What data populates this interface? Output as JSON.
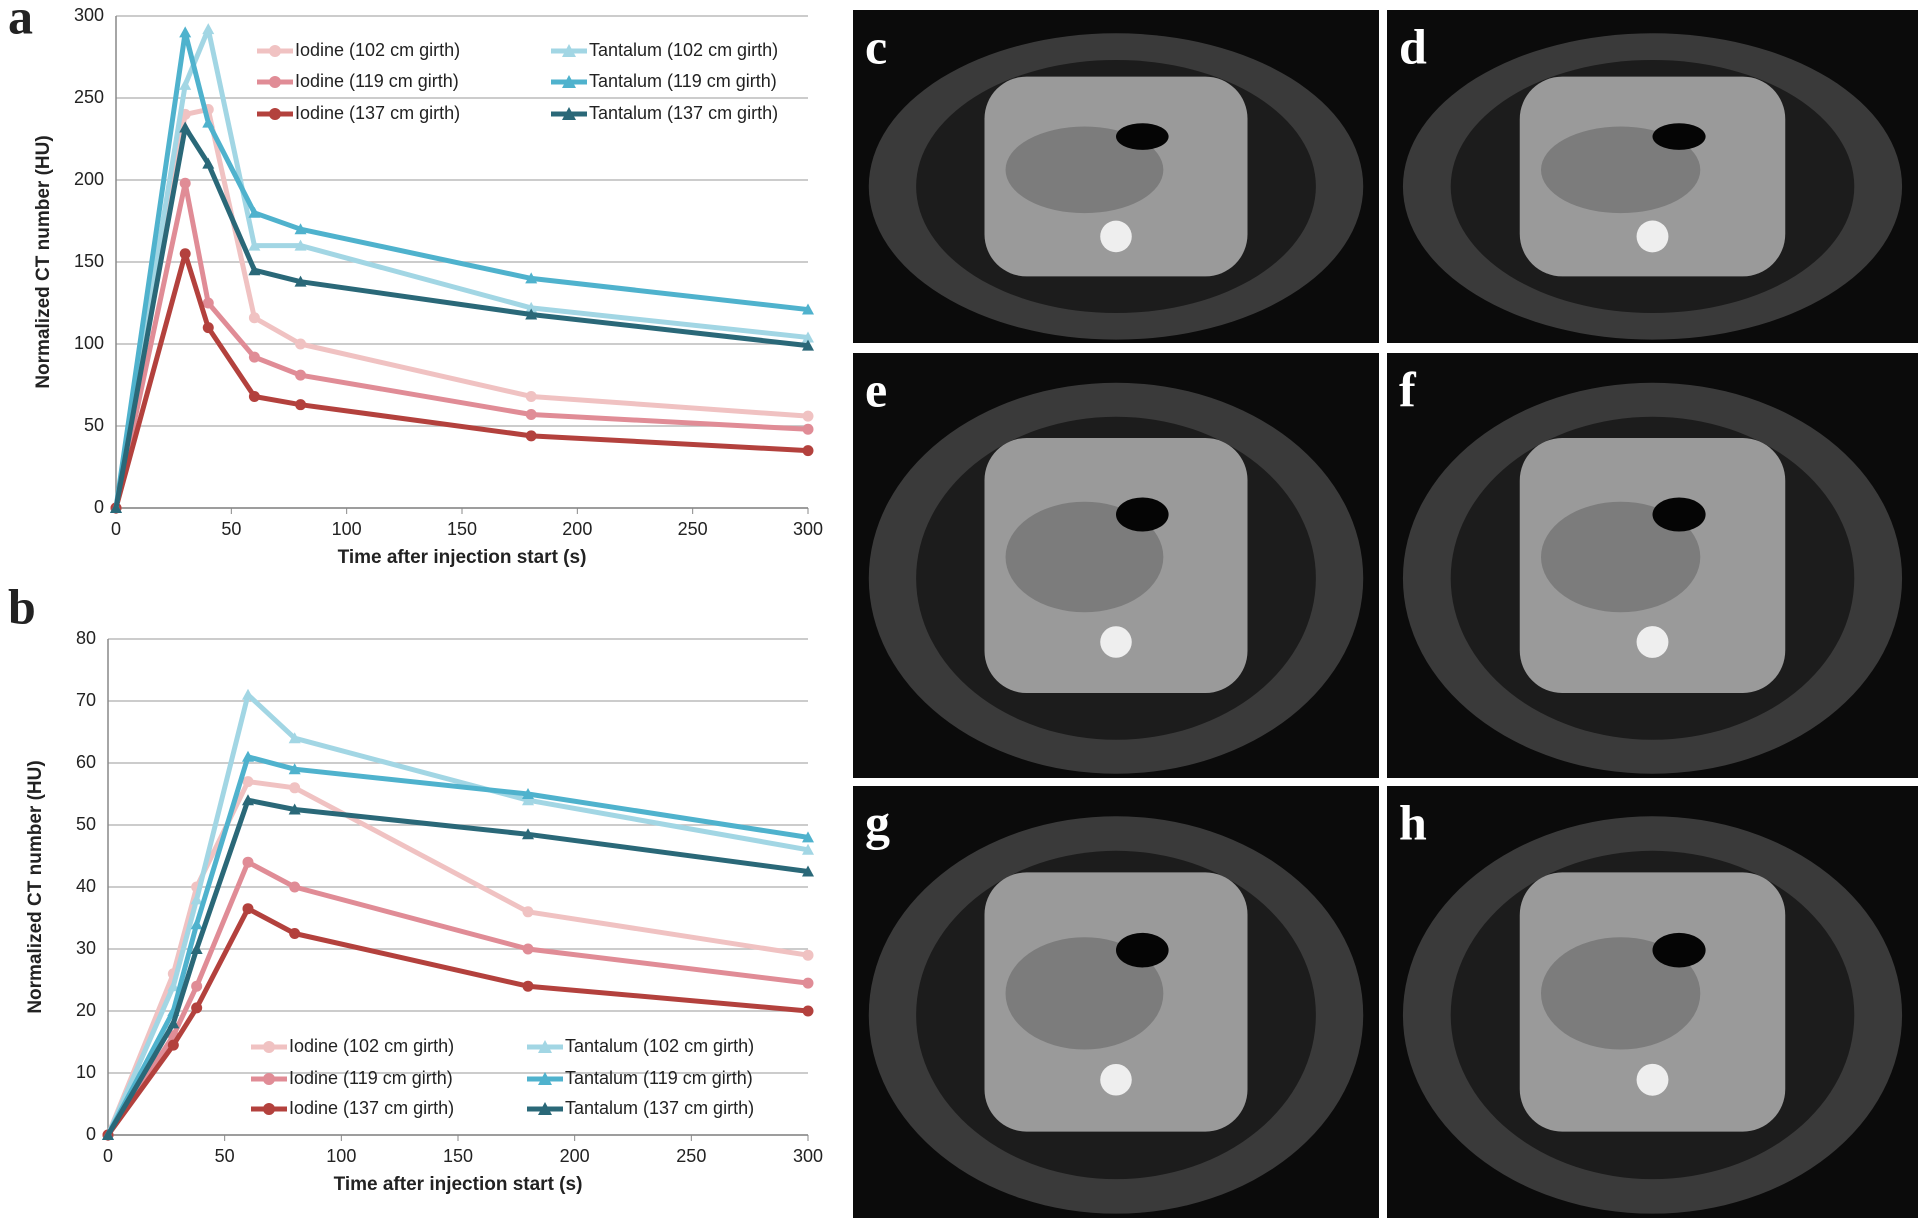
{
  "chart_data": [
    {
      "type": "line",
      "label": "a",
      "xlabel": "Time after injection start (s)",
      "ylabel": "Normalized CT number (HU)",
      "x": [
        0,
        30,
        40,
        60,
        80,
        180,
        300
      ],
      "xlim": [
        0,
        300
      ],
      "xticks": [
        0,
        50,
        100,
        150,
        200,
        250,
        300
      ],
      "ylim": [
        0,
        300
      ],
      "yticks": [
        0,
        50,
        100,
        150,
        200,
        250,
        300
      ],
      "grid": true,
      "series": [
        {
          "name": "Iodine (102 cm girth)",
          "color": "#f0c2c2",
          "marker": "circle",
          "values": [
            0,
            240,
            243,
            116,
            100,
            68,
            56
          ]
        },
        {
          "name": "Iodine (119 cm girth)",
          "color": "#e08c96",
          "marker": "circle",
          "values": [
            0,
            198,
            125,
            92,
            81,
            57,
            48
          ]
        },
        {
          "name": "Iodine (137 cm girth)",
          "color": "#b3413d",
          "marker": "circle",
          "values": [
            0,
            155,
            110,
            68,
            63,
            44,
            35
          ]
        },
        {
          "name": "Tantalum (102 cm girth)",
          "color": "#a2d6e4",
          "marker": "triangle",
          "values": [
            0,
            258,
            292,
            160,
            160,
            122,
            104
          ]
        },
        {
          "name": "Tantalum (119 cm girth)",
          "color": "#4fb2cd",
          "marker": "triangle",
          "values": [
            0,
            290,
            235,
            180,
            170,
            140,
            121
          ]
        },
        {
          "name": "Tantalum (137 cm girth)",
          "color": "#2a6878",
          "marker": "triangle",
          "values": [
            0,
            232,
            210,
            145,
            138,
            118,
            99
          ]
        }
      ]
    },
    {
      "type": "line",
      "label": "b",
      "xlabel": "Time after injection start (s)",
      "ylabel": "Normalized CT number (HU)",
      "x": [
        0,
        28,
        38,
        60,
        80,
        180,
        300
      ],
      "xlim": [
        0,
        300
      ],
      "xticks": [
        0,
        50,
        100,
        150,
        200,
        250,
        300
      ],
      "ylim": [
        0,
        80
      ],
      "yticks": [
        0,
        10,
        20,
        30,
        40,
        50,
        60,
        70,
        80
      ],
      "grid": true,
      "series": [
        {
          "name": "Iodine (102 cm girth)",
          "color": "#f0c2c2",
          "marker": "circle",
          "values": [
            0,
            26,
            40,
            57,
            56,
            36,
            29
          ]
        },
        {
          "name": "Iodine (119 cm girth)",
          "color": "#e08c96",
          "marker": "circle",
          "values": [
            0,
            16,
            24,
            44,
            40,
            30,
            24.5
          ]
        },
        {
          "name": "Iodine (137 cm girth)",
          "color": "#b3413d",
          "marker": "circle",
          "values": [
            0,
            14.5,
            20.5,
            36.5,
            32.5,
            24,
            20
          ]
        },
        {
          "name": "Tantalum (102 cm girth)",
          "color": "#a2d6e4",
          "marker": "triangle",
          "values": [
            0,
            24,
            38,
            71,
            64,
            54,
            46
          ]
        },
        {
          "name": "Tantalum (119 cm girth)",
          "color": "#4fb2cd",
          "marker": "triangle",
          "values": [
            0,
            20,
            34,
            61,
            59,
            55,
            48
          ]
        },
        {
          "name": "Tantalum (137 cm girth)",
          "color": "#2a6878",
          "marker": "triangle",
          "values": [
            0,
            18,
            30,
            54,
            52.5,
            48.5,
            42.5
          ]
        }
      ]
    }
  ],
  "images": [
    {
      "label": "c"
    },
    {
      "label": "d"
    },
    {
      "label": "e"
    },
    {
      "label": "f"
    },
    {
      "label": "g"
    },
    {
      "label": "h"
    }
  ]
}
